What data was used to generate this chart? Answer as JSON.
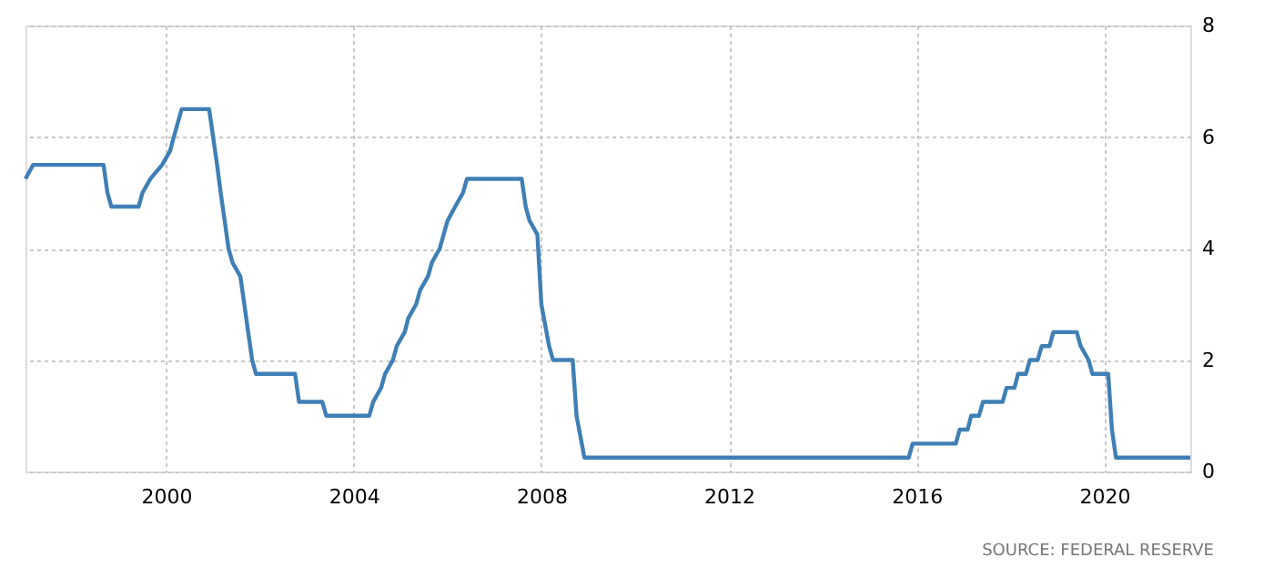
{
  "chart_data": {
    "type": "line",
    "annotations": [
      "SOURCE:  FEDERAL  RESERVE"
    ],
    "x": [
      "1997-01",
      "1997-03",
      "1998-09",
      "1998-10",
      "1998-11",
      "1999-06",
      "1999-07",
      "1999-09",
      "1999-12",
      "2000-02",
      "2000-03",
      "2000-05",
      "2000-12",
      "2001-01",
      "2001-02",
      "2001-03",
      "2001-04",
      "2001-05",
      "2001-06",
      "2001-08",
      "2001-09",
      "2001-10",
      "2001-11",
      "2001-12",
      "2002-10",
      "2002-11",
      "2003-05",
      "2003-06",
      "2004-05",
      "2004-06",
      "2004-08",
      "2004-09",
      "2004-11",
      "2004-12",
      "2005-02",
      "2005-03",
      "2005-05",
      "2005-06",
      "2005-08",
      "2005-09",
      "2005-11",
      "2005-12",
      "2006-01",
      "2006-03",
      "2006-05",
      "2006-06",
      "2007-08",
      "2007-09",
      "2007-10",
      "2007-12",
      "2008-01",
      "2008-03",
      "2008-04",
      "2008-09",
      "2008-10",
      "2008-12",
      "2015-11",
      "2015-12",
      "2016-11",
      "2016-12",
      "2017-02",
      "2017-03",
      "2017-05",
      "2017-06",
      "2017-11",
      "2017-12",
      "2018-02",
      "2018-03",
      "2018-05",
      "2018-06",
      "2018-08",
      "2018-09",
      "2018-11",
      "2018-12",
      "2019-06",
      "2019-07",
      "2019-09",
      "2019-10",
      "2020-02",
      "2020-03",
      "2020-04",
      "2021-11"
    ],
    "series": [
      {
        "color": "#3f7fb5",
        "values": [
          5.25,
          5.5,
          5.5,
          5.0,
          4.75,
          4.75,
          5.0,
          5.25,
          5.5,
          5.75,
          6.0,
          6.5,
          6.5,
          6.0,
          5.5,
          5.0,
          4.5,
          4.0,
          3.75,
          3.5,
          3.0,
          2.5,
          2.0,
          1.75,
          1.75,
          1.25,
          1.25,
          1.0,
          1.0,
          1.25,
          1.5,
          1.75,
          2.0,
          2.25,
          2.5,
          2.75,
          3.0,
          3.25,
          3.5,
          3.75,
          4.0,
          4.25,
          4.5,
          4.75,
          5.0,
          5.25,
          5.25,
          4.75,
          4.5,
          4.25,
          3.0,
          2.25,
          2.0,
          2.0,
          1.0,
          0.25,
          0.25,
          0.5,
          0.5,
          0.75,
          0.75,
          1.0,
          1.0,
          1.25,
          1.25,
          1.5,
          1.5,
          1.75,
          1.75,
          2.0,
          2.0,
          2.25,
          2.25,
          2.5,
          2.5,
          2.25,
          2.0,
          1.75,
          1.75,
          0.75,
          0.25,
          0.25
        ]
      }
    ],
    "xlim": [
      "1997-01",
      "2021-11"
    ],
    "xticks": [
      "2000",
      "2004",
      "2008",
      "2012",
      "2016",
      "2020"
    ],
    "ylim": [
      0,
      8
    ],
    "yticks": [
      0,
      2,
      4,
      6,
      8
    ],
    "grid": true,
    "marker": "none",
    "line_style": "solid"
  }
}
